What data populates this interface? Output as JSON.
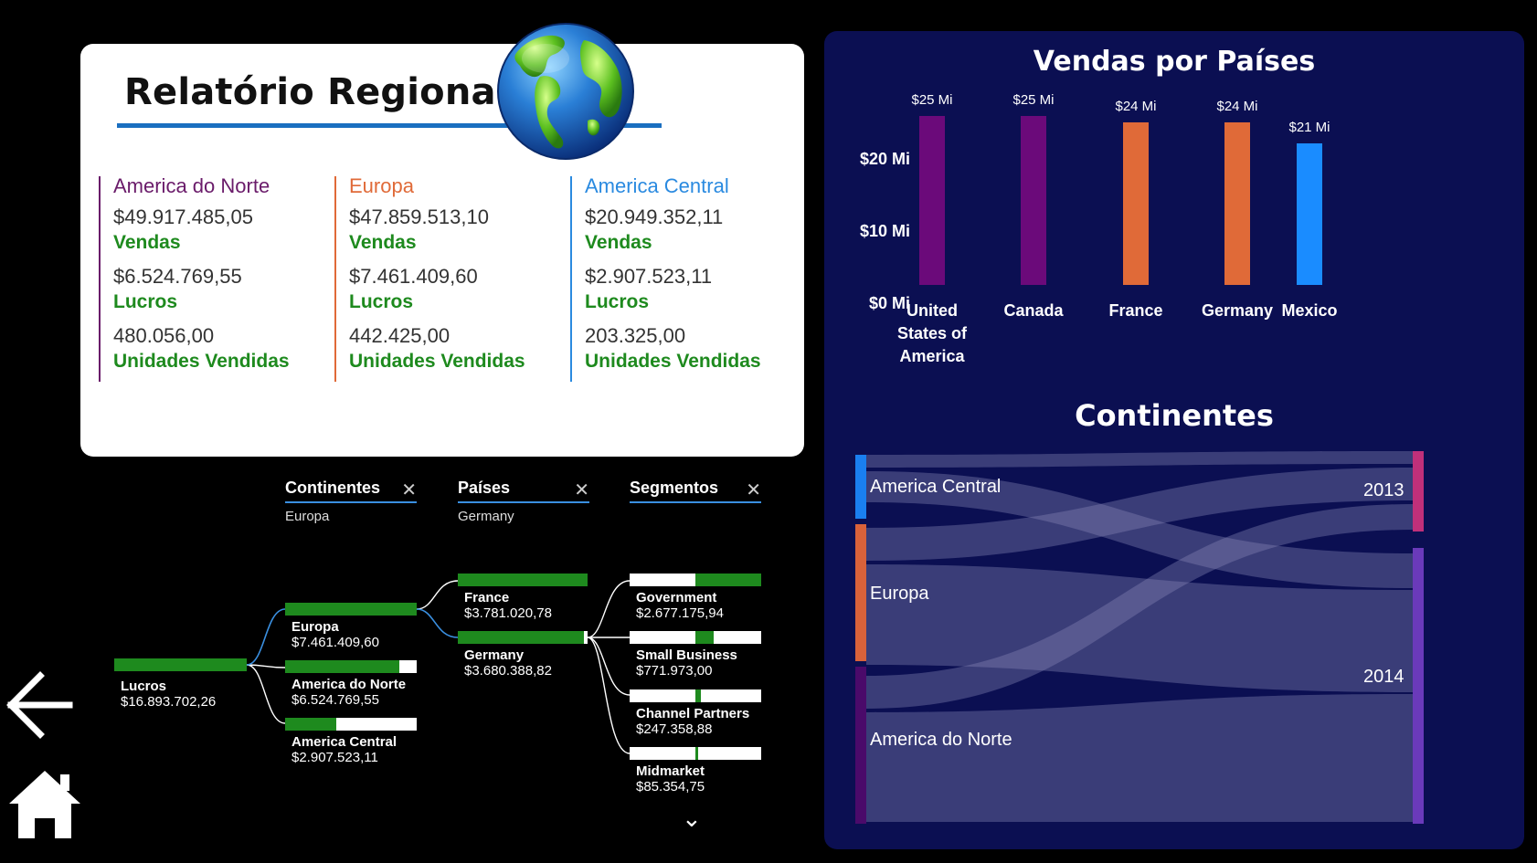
{
  "report": {
    "title": "Relatório Regional",
    "regions": [
      {
        "name": "America do Norte",
        "color": "#6a1b6a",
        "sales": "$49.917.485,05",
        "sales_label": "Vendas",
        "profit": "$6.524.769,55",
        "profit_label": "Lucros",
        "units": "480.056,00",
        "units_label": "Unidades Vendidas"
      },
      {
        "name": "Europa",
        "color": "#e06a38",
        "sales": "$47.859.513,10",
        "sales_label": "Vendas",
        "profit": "$7.461.409,60",
        "profit_label": "Lucros",
        "units": "442.425,00",
        "units_label": "Unidades Vendidas"
      },
      {
        "name": "America Central",
        "color": "#2a8ae0",
        "sales": "$20.949.352,11",
        "sales_label": "Vendas",
        "profit": "$2.907.523,11",
        "profit_label": "Lucros",
        "units": "203.325,00",
        "units_label": "Unidades Vendidas"
      }
    ]
  },
  "tree": {
    "headers": [
      {
        "label": "Continentes",
        "selected": "Europa"
      },
      {
        "label": "Países",
        "selected": "Germany"
      },
      {
        "label": "Segmentos",
        "selected": ""
      }
    ],
    "close_symbol": "✕",
    "root": {
      "name": "Lucros",
      "value": "$16.893.702,26",
      "fill": 1.0
    },
    "level1": [
      {
        "name": "Europa",
        "value": "$7.461.409,60",
        "fill": 1.0
      },
      {
        "name": "America do Norte",
        "value": "$6.524.769,55",
        "fill": 0.87
      },
      {
        "name": "America Central",
        "value": "$2.907.523,11",
        "fill": 0.39
      }
    ],
    "level2": [
      {
        "name": "France",
        "value": "$3.781.020,78",
        "fill": 1.0
      },
      {
        "name": "Germany",
        "value": "$3.680.388,82",
        "fill": 0.97
      }
    ],
    "level3": [
      {
        "name": "Government",
        "value": "$2.677.175,94",
        "fill": 0.5
      },
      {
        "name": "Small Business",
        "value": "$771.973,00",
        "fill": 0.14
      },
      {
        "name": "Channel Partners",
        "value": "$247.358,88",
        "fill": 0.04
      },
      {
        "name": "Midmarket",
        "value": "$85.354,75",
        "fill": 0.015
      }
    ],
    "expand_symbol": "⌄"
  },
  "sales_chart": {
    "title": "Vendas por Países",
    "chart_data": {
      "type": "bar",
      "categories": [
        "United States of America",
        "Canada",
        "France",
        "Germany",
        "Mexico"
      ],
      "values": [
        25,
        25,
        24,
        24,
        21
      ],
      "data_labels": [
        "$25 Mi",
        "$25 Mi",
        "$24 Mi",
        "$24 Mi",
        "$21 Mi"
      ],
      "bar_colors": [
        "#6b0a7a",
        "#6b0a7a",
        "#e06a38",
        "#e06a38",
        "#1a8cff"
      ],
      "yticks": [
        "$20 Mi",
        "$10 Mi",
        "$0 Mi"
      ],
      "ylim": [
        0,
        25
      ]
    }
  },
  "continents_chart": {
    "title": "Continentes",
    "sources": [
      "America Central",
      "Europa",
      "America do Norte"
    ],
    "targets": [
      "2013",
      "2014"
    ],
    "source_colors": [
      "#1a7ff0",
      "#d9623a",
      "#4a0a6a"
    ],
    "target_colors": [
      "#c0307a",
      "#6a3aba"
    ]
  },
  "nav": {
    "back_icon": "back-arrow-icon",
    "home_icon": "home-icon"
  }
}
